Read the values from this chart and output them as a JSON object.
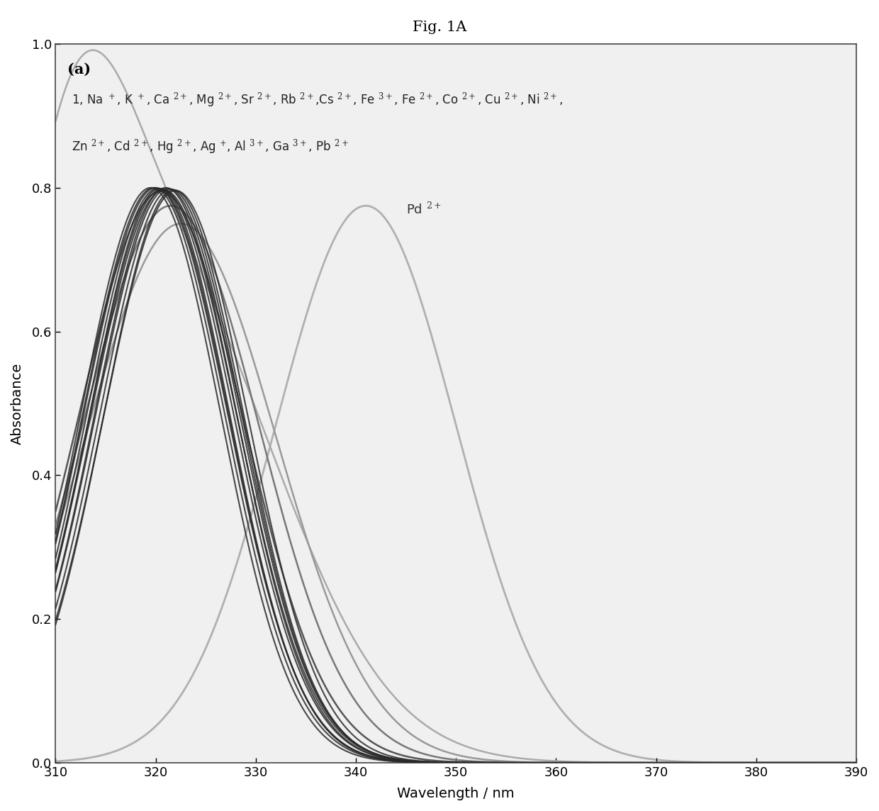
{
  "title": "Fig. 1A",
  "panel_label": "(a)",
  "xlabel": "Wavelength / nm",
  "ylabel": "Absorbance",
  "xlim": [
    310,
    390
  ],
  "ylim": [
    0.0,
    1.0
  ],
  "xticks": [
    310,
    320,
    330,
    340,
    350,
    360,
    370,
    380,
    390
  ],
  "yticks": [
    0.0,
    0.2,
    0.4,
    0.6,
    0.8,
    1.0
  ],
  "legend_line1": "1, Na $^+$, K $^+$, Ca $^{2+}$, Mg $^{2+}$, Sr $^{2+}$, Rb $^{2+}$,Cs $^{2+}$, Fe $^{3+}$, Fe $^{2+}$, Co $^{2+}$, Cu $^{2+}$, Ni $^{2+}$,",
  "legend_line2": "Zn $^{2+}$, Cd $^{2+}$, Hg $^{2+}$, Ag $^{+}$, Al $^{3+}$, Ga $^{3+}$, Pb $^{2+}$",
  "pd_label": "Pd $^{2+}$",
  "background_color": "#ffffff",
  "plot_bg_color": "#f0f0f0",
  "dark_cluster_color": "#2a2a2a",
  "medium_color_1": "#555555",
  "medium_color_2": "#777777",
  "medium_color_3": "#999999",
  "special_light_color": "#aaaaaa",
  "pd_curve_color": "#b0b0b0",
  "tick_label_size": 13,
  "axis_label_size": 14,
  "title_size": 15,
  "legend_text_size": 12,
  "panel_label_size": 15
}
